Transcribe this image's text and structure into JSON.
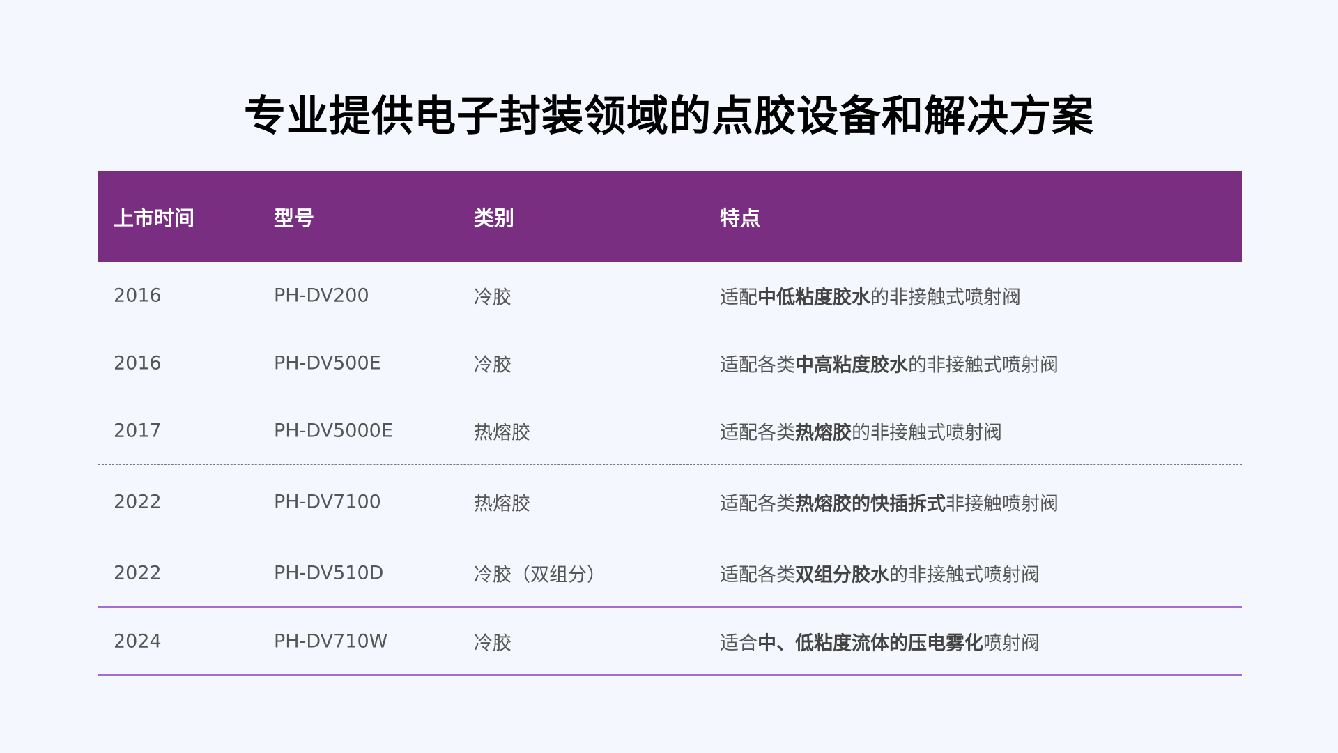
{
  "title": "专业提供电子封装领域的点胶设备和解决方案",
  "accent_color": "#792e82",
  "table": {
    "headers": [
      "上市时间",
      "型号",
      "类别",
      "特点"
    ],
    "rows": [
      {
        "year": "2016",
        "model": "PH-DV200",
        "category": "冷胶",
        "features": [
          {
            "text": "适配",
            "bold": false
          },
          {
            "text": "中低粘度胶水",
            "bold": true
          },
          {
            "text": "的非接触式喷射阀",
            "bold": false
          }
        ]
      },
      {
        "year": "2016",
        "model": "PH-DV500E",
        "category": "冷胶",
        "features": [
          {
            "text": "适配各类",
            "bold": false
          },
          {
            "text": "中高粘度胶水",
            "bold": true
          },
          {
            "text": "的非接触式喷射阀",
            "bold": false
          }
        ]
      },
      {
        "year": "2017",
        "model": "PH-DV5000E",
        "category": "热熔胶",
        "features": [
          {
            "text": "适配各类",
            "bold": false
          },
          {
            "text": "热熔胶",
            "bold": true
          },
          {
            "text": "的非接触式喷射阀",
            "bold": false
          }
        ]
      },
      {
        "year": "2022",
        "model": "PH-DV7100",
        "category": "热熔胶",
        "features": [
          {
            "text": "适配各类",
            "bold": false
          },
          {
            "text": "热熔胶的快插拆式",
            "bold": true
          },
          {
            "text": "非接触喷射阀",
            "bold": false
          }
        ]
      },
      {
        "year": "2022",
        "model": "PH-DV510D",
        "category": "冷胶（双组分）",
        "features": [
          {
            "text": "适配各类",
            "bold": false
          },
          {
            "text": "双组分胶水",
            "bold": true
          },
          {
            "text": "的非接触式喷射阀",
            "bold": false
          }
        ]
      },
      {
        "year": "2024",
        "model": "PH-DV710W",
        "category": "冷胶",
        "features": [
          {
            "text": "适合",
            "bold": false
          },
          {
            "text": "中、低粘度流体的压电雾化",
            "bold": true
          },
          {
            "text": "喷射阀",
            "bold": false
          }
        ]
      }
    ]
  }
}
